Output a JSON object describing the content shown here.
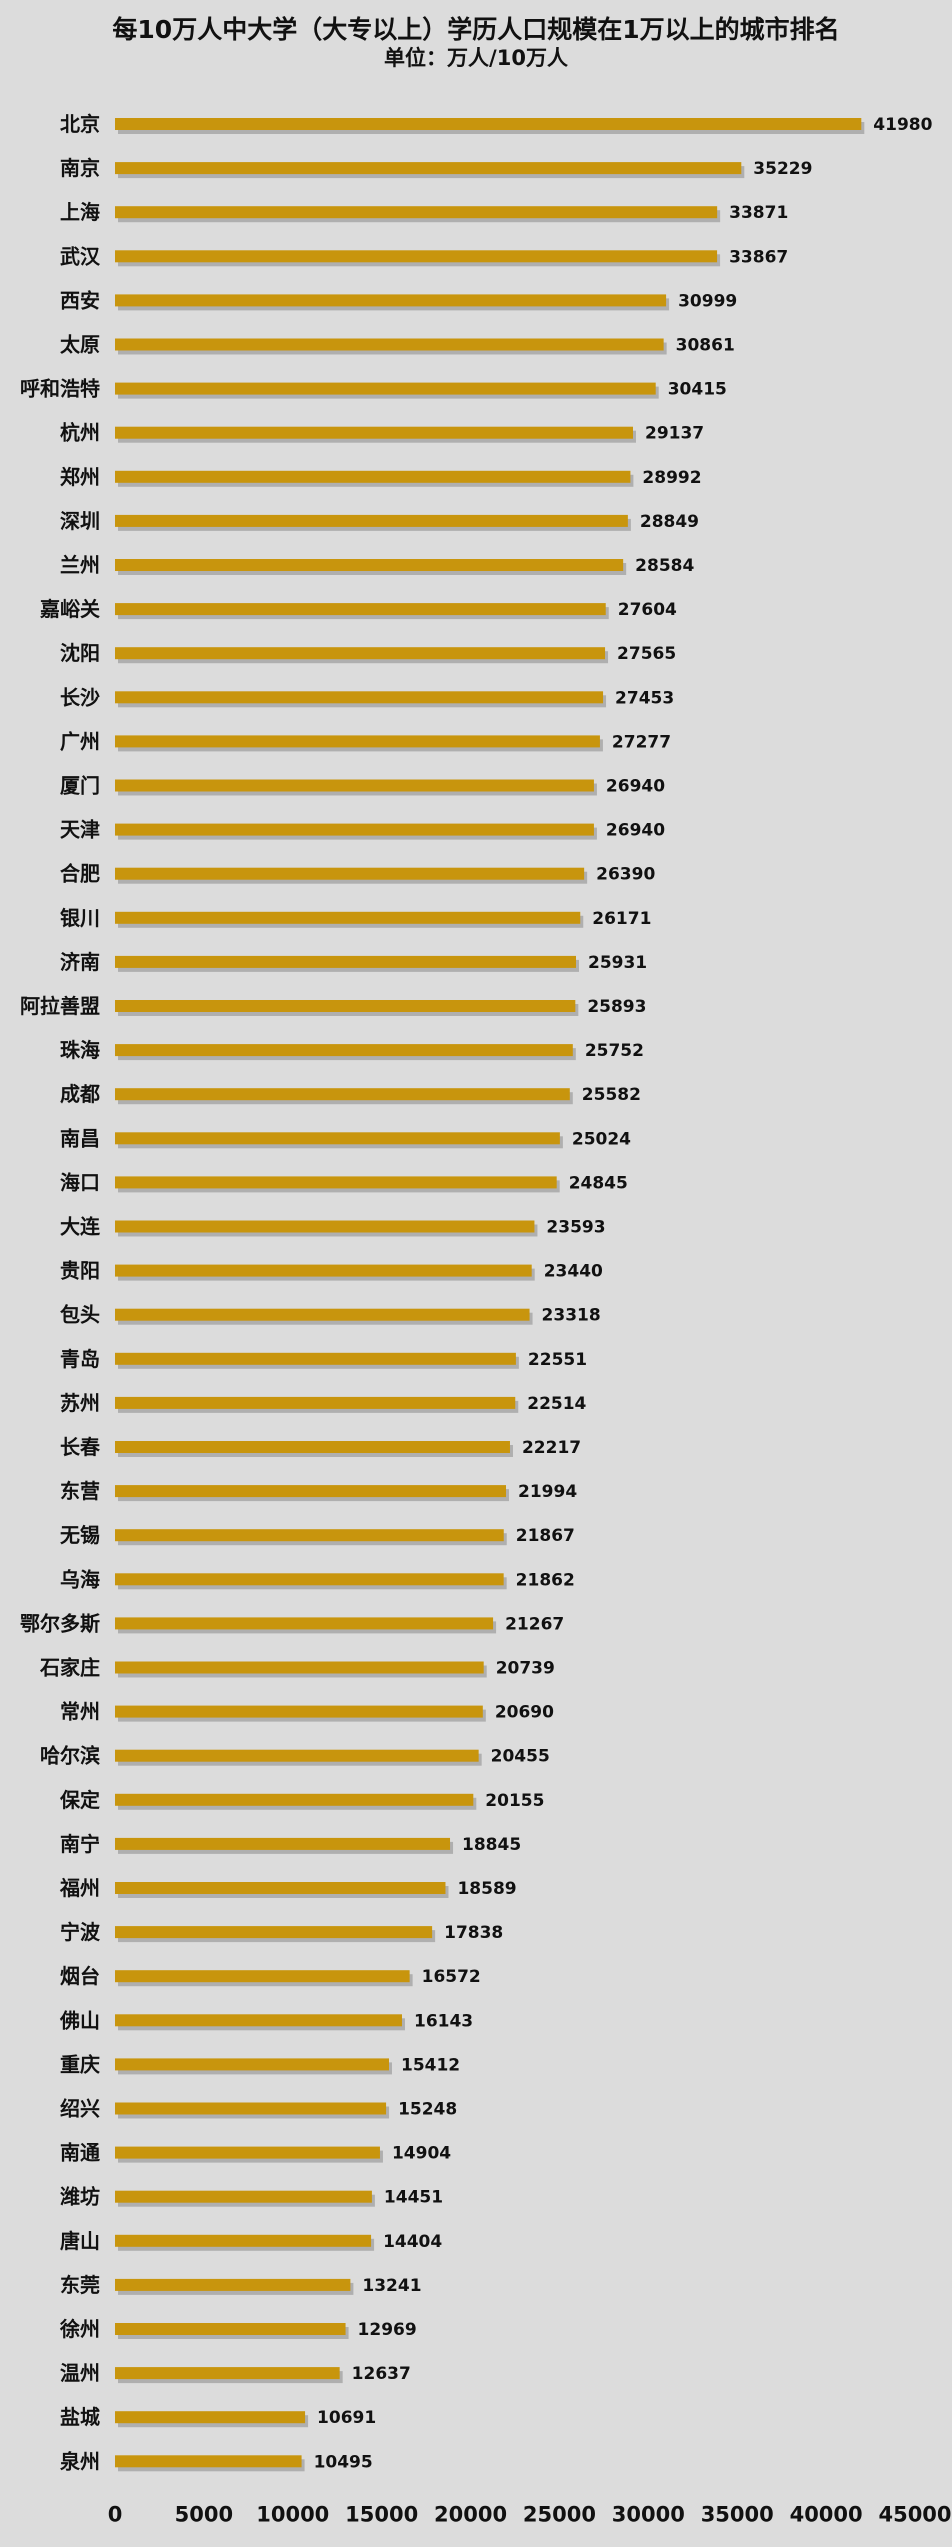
{
  "colors": {
    "background": "#dcdcdc",
    "bar": "#c8950d",
    "bar_shadow": "#8a8a8a"
  },
  "chart_data": {
    "type": "bar",
    "orientation": "horizontal",
    "title": "每10万人中大学（大专以上）学历人口规模在1万以上的城市排名",
    "subtitle": "单位：万人/10万人",
    "xlim": [
      0,
      45000
    ],
    "xticks": [
      0,
      5000,
      10000,
      15000,
      20000,
      25000,
      30000,
      35000,
      40000,
      45000
    ],
    "grid": false,
    "legend": "none",
    "categories": [
      "北京",
      "南京",
      "上海",
      "武汉",
      "西安",
      "太原",
      "呼和浩特",
      "杭州",
      "郑州",
      "深圳",
      "兰州",
      "嘉峪关",
      "沈阳",
      "长沙",
      "广州",
      "厦门",
      "天津",
      "合肥",
      "银川",
      "济南",
      "阿拉善盟",
      "珠海",
      "成都",
      "南昌",
      "海口",
      "大连",
      "贵阳",
      "包头",
      "青岛",
      "苏州",
      "长春",
      "东营",
      "无锡",
      "乌海",
      "鄂尔多斯",
      "石家庄",
      "常州",
      "哈尔滨",
      "保定",
      "南宁",
      "福州",
      "宁波",
      "烟台",
      "佛山",
      "重庆",
      "绍兴",
      "南通",
      "潍坊",
      "唐山",
      "东莞",
      "徐州",
      "温州",
      "盐城",
      "泉州"
    ],
    "values": [
      41980,
      35229,
      33871,
      33867,
      30999,
      30861,
      30415,
      29137,
      28992,
      28849,
      28584,
      27604,
      27565,
      27453,
      27277,
      26940,
      26940,
      26390,
      26171,
      25931,
      25893,
      25752,
      25582,
      25024,
      24845,
      23593,
      23440,
      23318,
      22551,
      22514,
      22217,
      21994,
      21867,
      21862,
      21267,
      20739,
      20690,
      20455,
      20155,
      18845,
      18589,
      17838,
      16572,
      16143,
      15412,
      15248,
      14904,
      14451,
      14404,
      13241,
      12969,
      12637,
      10691,
      10495
    ]
  }
}
